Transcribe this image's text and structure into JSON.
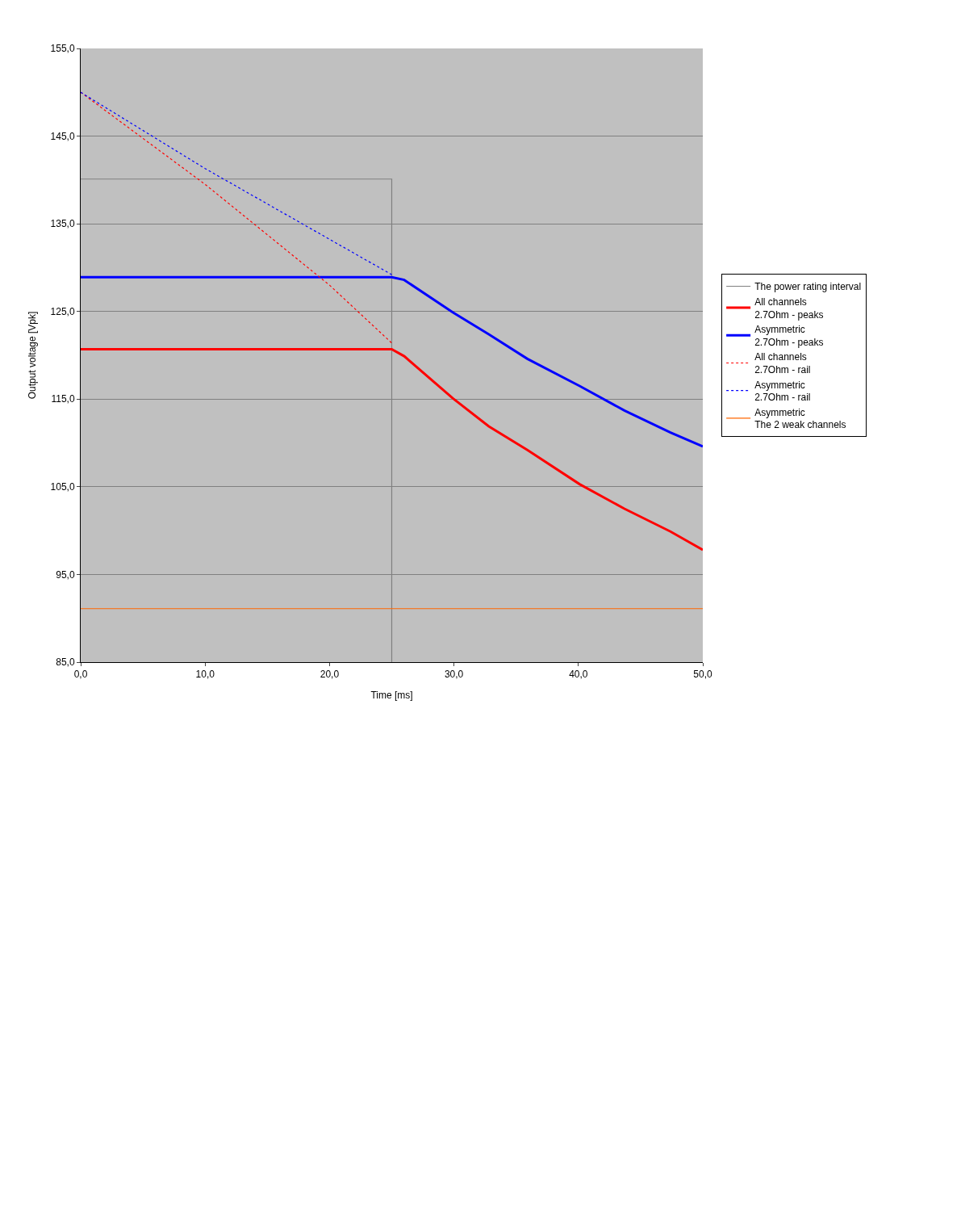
{
  "chart_data": {
    "type": "line",
    "xlabel": "Time [ms]",
    "ylabel": "Output voltage [Vpk]",
    "xlim": [
      0,
      50
    ],
    "ylim": [
      85,
      155
    ],
    "xticks": [
      {
        "value": 0,
        "label": "0,0"
      },
      {
        "value": 10,
        "label": "10,0"
      },
      {
        "value": 20,
        "label": "20,0"
      },
      {
        "value": 30,
        "label": "30,0"
      },
      {
        "value": 40,
        "label": "40,0"
      },
      {
        "value": 50,
        "label": "50,0"
      }
    ],
    "yticks": [
      {
        "value": 85,
        "label": "85,0"
      },
      {
        "value": 95,
        "label": "95,0"
      },
      {
        "value": 105,
        "label": "105,0"
      },
      {
        "value": 115,
        "label": "115,0"
      },
      {
        "value": 125,
        "label": "125,0"
      },
      {
        "value": 135,
        "label": "135,0"
      },
      {
        "value": 145,
        "label": "145,0"
      },
      {
        "value": 155,
        "label": "155,0"
      }
    ],
    "grid": "y",
    "legend": "right",
    "marker": "none",
    "series": [
      {
        "name": "The power rating interval",
        "color": "#808080",
        "line_style": "solid",
        "x": [
          0,
          25,
          25
        ],
        "values": [
          140.1,
          140.1,
          85
        ]
      },
      {
        "name": "All channels\n2.7Ohm - peaks",
        "color": "#ff0000",
        "line_style": "solid",
        "x": [
          0,
          25,
          26.0,
          29.9,
          32.8,
          35.9,
          40.1,
          43.7,
          47.4,
          50
        ],
        "values": [
          120.7,
          120.7,
          119.9,
          115.1,
          111.9,
          109.2,
          105.3,
          102.5,
          99.9,
          97.8
        ]
      },
      {
        "name": "Asymmetric\n2.7Ohm - peaks",
        "color": "#0000ff",
        "line_style": "solid",
        "x": [
          0,
          25,
          26.0,
          29.9,
          32.8,
          35.9,
          40.1,
          43.7,
          47.4,
          50
        ],
        "values": [
          128.9,
          128.9,
          128.6,
          124.9,
          122.4,
          119.6,
          116.5,
          113.7,
          111.2,
          109.6
        ]
      },
      {
        "name": "All channels\n2.7Ohm - rail",
        "color": "#ff0000",
        "line_style": "dotted",
        "x": [
          0,
          10,
          20,
          25
        ],
        "values": [
          150.0,
          139.5,
          128.0,
          121.4
        ]
      },
      {
        "name": "Asymmetric\n2.7Ohm - rail",
        "color": "#0000ff",
        "line_style": "dotted",
        "x": [
          0,
          10,
          25
        ],
        "values": [
          150.0,
          141.3,
          129.2
        ]
      },
      {
        "name": "Asymmetric\nThe 2 weak channels",
        "color": "#ff6600",
        "line_style": "solid",
        "x": [
          0,
          50
        ],
        "values": [
          91.1,
          91.1
        ]
      }
    ]
  }
}
